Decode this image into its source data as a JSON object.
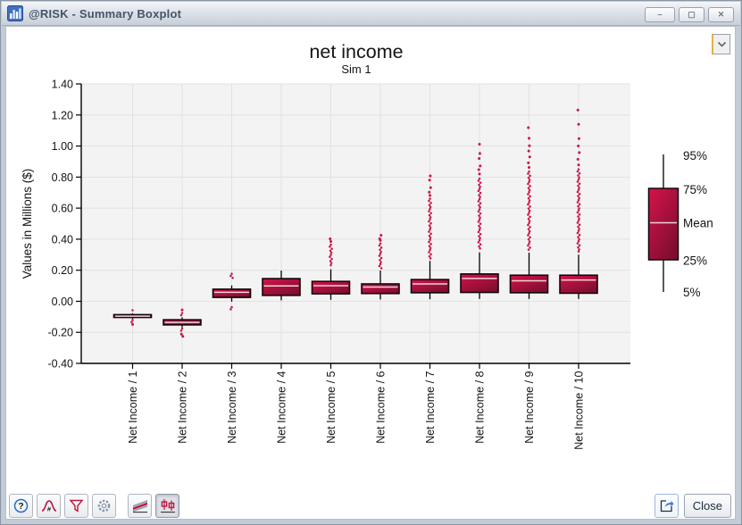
{
  "window": {
    "title": "@RISK - Summary Boxplot",
    "controls": {
      "minimize": "–",
      "maximize": "▢",
      "close": "✕"
    }
  },
  "colors": {
    "box_light": "#d5134a",
    "box_dark": "#7e0e2f",
    "outlier": "#ce1044",
    "mean_line": "#efd3da",
    "plot_bg": "#f3f3f3",
    "grid": "#e2e2e2",
    "axis": "#000000",
    "titlebar_text": "#44546a"
  },
  "buttons": {
    "close_label": "Close"
  },
  "toolbar": {
    "icons": [
      "help",
      "distribution",
      "filter",
      "settings",
      "trend-summary",
      "boxplot-summary",
      "export"
    ]
  },
  "chart_data": {
    "type": "boxplot",
    "title": "net income",
    "subtitle": "Sim 1",
    "ylabel": "Values in Millions ($)",
    "ylim": [
      -0.4,
      1.4
    ],
    "ytick_step": 0.2,
    "grid": true,
    "legend": {
      "position": "right",
      "labels": [
        "95%",
        "75%",
        "Mean",
        "25%",
        "5%"
      ]
    },
    "categories": [
      "Net Income / 1",
      "Net Income / 2",
      "Net Income / 3",
      "Net Income / 4",
      "Net Income / 5",
      "Net Income / 6",
      "Net Income / 7",
      "Net Income / 8",
      "Net Income / 9",
      "Net Income / 10"
    ],
    "boxes": [
      {
        "label": "Net Income / 1",
        "p5": -0.114,
        "p25": -0.104,
        "mean": -0.096,
        "p75": -0.086,
        "p95": -0.077,
        "dense_above": [
          -0.068,
          -0.058
        ],
        "dots_above": [],
        "dense_below": [
          -0.135,
          -0.121
        ],
        "dots_below": [
          -0.149
        ]
      },
      {
        "label": "Net Income / 2",
        "p5": -0.169,
        "p25": -0.152,
        "mean": -0.136,
        "p75": -0.119,
        "p95": -0.103,
        "dense_above": [
          -0.098,
          -0.076
        ],
        "dots_above": [
          -0.056
        ],
        "dense_below": [
          -0.192,
          -0.176
        ],
        "dots_below": [
          -0.212,
          -0.226
        ]
      },
      {
        "label": "Net Income / 3",
        "p5": -0.002,
        "p25": 0.025,
        "mean": 0.058,
        "p75": 0.078,
        "p95": 0.102,
        "dense_above": [
          0.145,
          0.177
        ],
        "dots_above": [],
        "dense_below": [
          -0.057,
          -0.038
        ],
        "dots_below": []
      },
      {
        "label": "Net Income / 4",
        "p5": 0.006,
        "p25": 0.038,
        "mean": 0.099,
        "p75": 0.146,
        "p95": 0.198,
        "dense_above": null,
        "dots_above": [],
        "dense_below": null,
        "dots_below": []
      },
      {
        "label": "Net Income / 5",
        "p5": 0.01,
        "p25": 0.048,
        "mean": 0.1,
        "p75": 0.128,
        "p95": 0.206,
        "dense_above": [
          0.22,
          0.365
        ],
        "dots_above": [
          0.385,
          0.402
        ],
        "dense_below": null,
        "dots_below": []
      },
      {
        "label": "Net Income / 6",
        "p5": 0.012,
        "p25": 0.05,
        "mean": 0.092,
        "p75": 0.112,
        "p95": 0.198,
        "dense_above": [
          0.21,
          0.372
        ],
        "dots_above": [
          0.392,
          0.403,
          0.425
        ],
        "dense_below": null,
        "dots_below": []
      },
      {
        "label": "Net Income / 7",
        "p5": 0.013,
        "p25": 0.055,
        "mean": 0.112,
        "p75": 0.14,
        "p95": 0.26,
        "dense_above": [
          0.272,
          0.66
        ],
        "dots_above": [
          0.682,
          0.703,
          0.732,
          0.78,
          0.808
        ],
        "dense_below": null,
        "dots_below": []
      },
      {
        "label": "Net Income / 8",
        "p5": 0.015,
        "p25": 0.057,
        "mean": 0.147,
        "p75": 0.176,
        "p95": 0.315,
        "dense_above": [
          0.332,
          0.79
        ],
        "dots_above": [
          0.82,
          0.848,
          0.872,
          0.92,
          0.952,
          1.012
        ],
        "dense_below": null,
        "dots_below": []
      },
      {
        "label": "Net Income / 9",
        "p5": 0.015,
        "p25": 0.055,
        "mean": 0.132,
        "p75": 0.168,
        "p95": 0.313,
        "dense_above": [
          0.33,
          0.835
        ],
        "dots_above": [
          0.862,
          0.892,
          0.93,
          0.968,
          1.002,
          1.05,
          1.118
        ],
        "dense_below": null,
        "dots_below": []
      },
      {
        "label": "Net Income / 10",
        "p5": 0.015,
        "p25": 0.052,
        "mean": 0.137,
        "p75": 0.168,
        "p95": 0.3,
        "dense_above": [
          0.32,
          0.85
        ],
        "dots_above": [
          0.878,
          0.915,
          0.958,
          1.0,
          1.048,
          1.14,
          1.232
        ],
        "dense_below": null,
        "dots_below": []
      }
    ]
  }
}
